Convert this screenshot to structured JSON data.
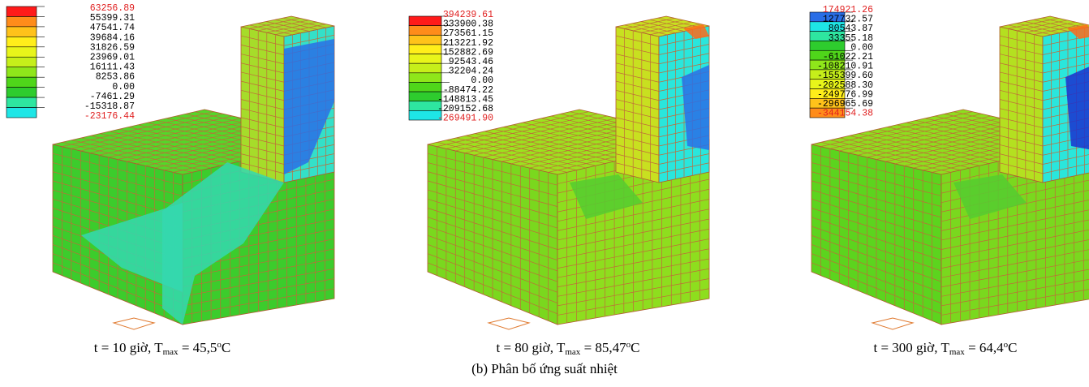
{
  "panels": [
    {
      "legend": [
        "63256.89",
        "55399.31",
        "47541.74",
        "39684.16",
        "31826.59",
        "23969.01",
        "16111.43",
        "8253.86",
        "0.00",
        "-7461.29",
        "-15318.87",
        "-23176.44"
      ],
      "caption": {
        "prefix": "t = 10 giờ, T",
        "sub": "max",
        "middle": " = 45,5",
        "sup": "o",
        "suffix": "C"
      }
    },
    {
      "legend": [
        "394239.61",
        "333900.38",
        "273561.15",
        "213221.92",
        "152882.69",
        "92543.46",
        "32204.24",
        "0.00",
        "-88474.22",
        "-148813.45",
        "-209152.68",
        "-269491.90"
      ],
      "caption": {
        "prefix": "t = 80 giờ, T",
        "sub": "max",
        "middle": " = 85,47",
        "sup": "o",
        "suffix": "C"
      }
    },
    {
      "legend": [
        "174921.26",
        "127732.57",
        "80543.87",
        "33355.18",
        "0.00",
        "-61022.21",
        "-108210.91",
        "-155399.60",
        "-202588.30",
        "-249776.99",
        "-296965.69",
        "-344154.38"
      ],
      "caption": {
        "prefix": "t = 300 giờ, T",
        "sub": "max",
        "middle": " = 64,4",
        "sup": "o",
        "suffix": "C"
      }
    }
  ],
  "figure_caption": "(b) Phân bố ứng suất nhiệt"
}
